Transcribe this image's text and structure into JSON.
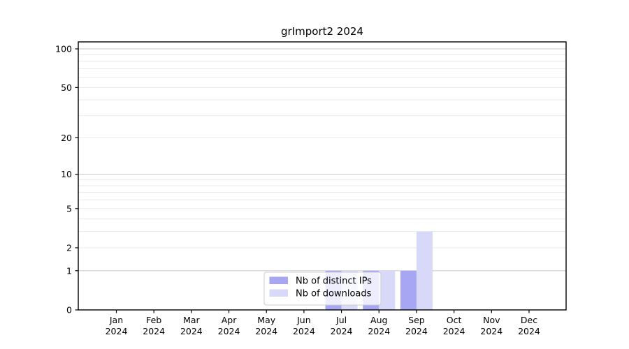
{
  "chart_data": {
    "type": "bar",
    "title": "grImport2 2024",
    "x_categories": [
      "Jan",
      "Feb",
      "Mar",
      "Apr",
      "May",
      "Jun",
      "Jul",
      "Aug",
      "Sep",
      "Oct",
      "Nov",
      "Dec"
    ],
    "x_year": "2024",
    "series": [
      {
        "name": "Nb of distinct IPs",
        "color": "#a6a6f2",
        "values": [
          0,
          0,
          0,
          0,
          0,
          0,
          1,
          1,
          1,
          0,
          0,
          0
        ]
      },
      {
        "name": "Nb of downloads",
        "color": "#d8d8f8",
        "values": [
          0,
          0,
          0,
          0,
          0,
          0,
          1,
          1,
          3,
          0,
          0,
          0
        ]
      }
    ],
    "yscale": "log1p",
    "ylim": [
      0,
      113
    ],
    "yticks": [
      0,
      1,
      2,
      5,
      10,
      20,
      50,
      100
    ],
    "grid": {
      "major": [
        1,
        10,
        100
      ],
      "minor": [
        2,
        3,
        4,
        5,
        6,
        7,
        8,
        9,
        20,
        30,
        40,
        50,
        60,
        70,
        80,
        90
      ]
    },
    "legend": {
      "position": "lower-center"
    },
    "colors": {
      "grid_major": "#c4c4c4",
      "grid_minor": "#eaeaea",
      "spine": "#000000",
      "legend_border": "#cccccc",
      "legend_bg_alpha": 0.8
    }
  }
}
